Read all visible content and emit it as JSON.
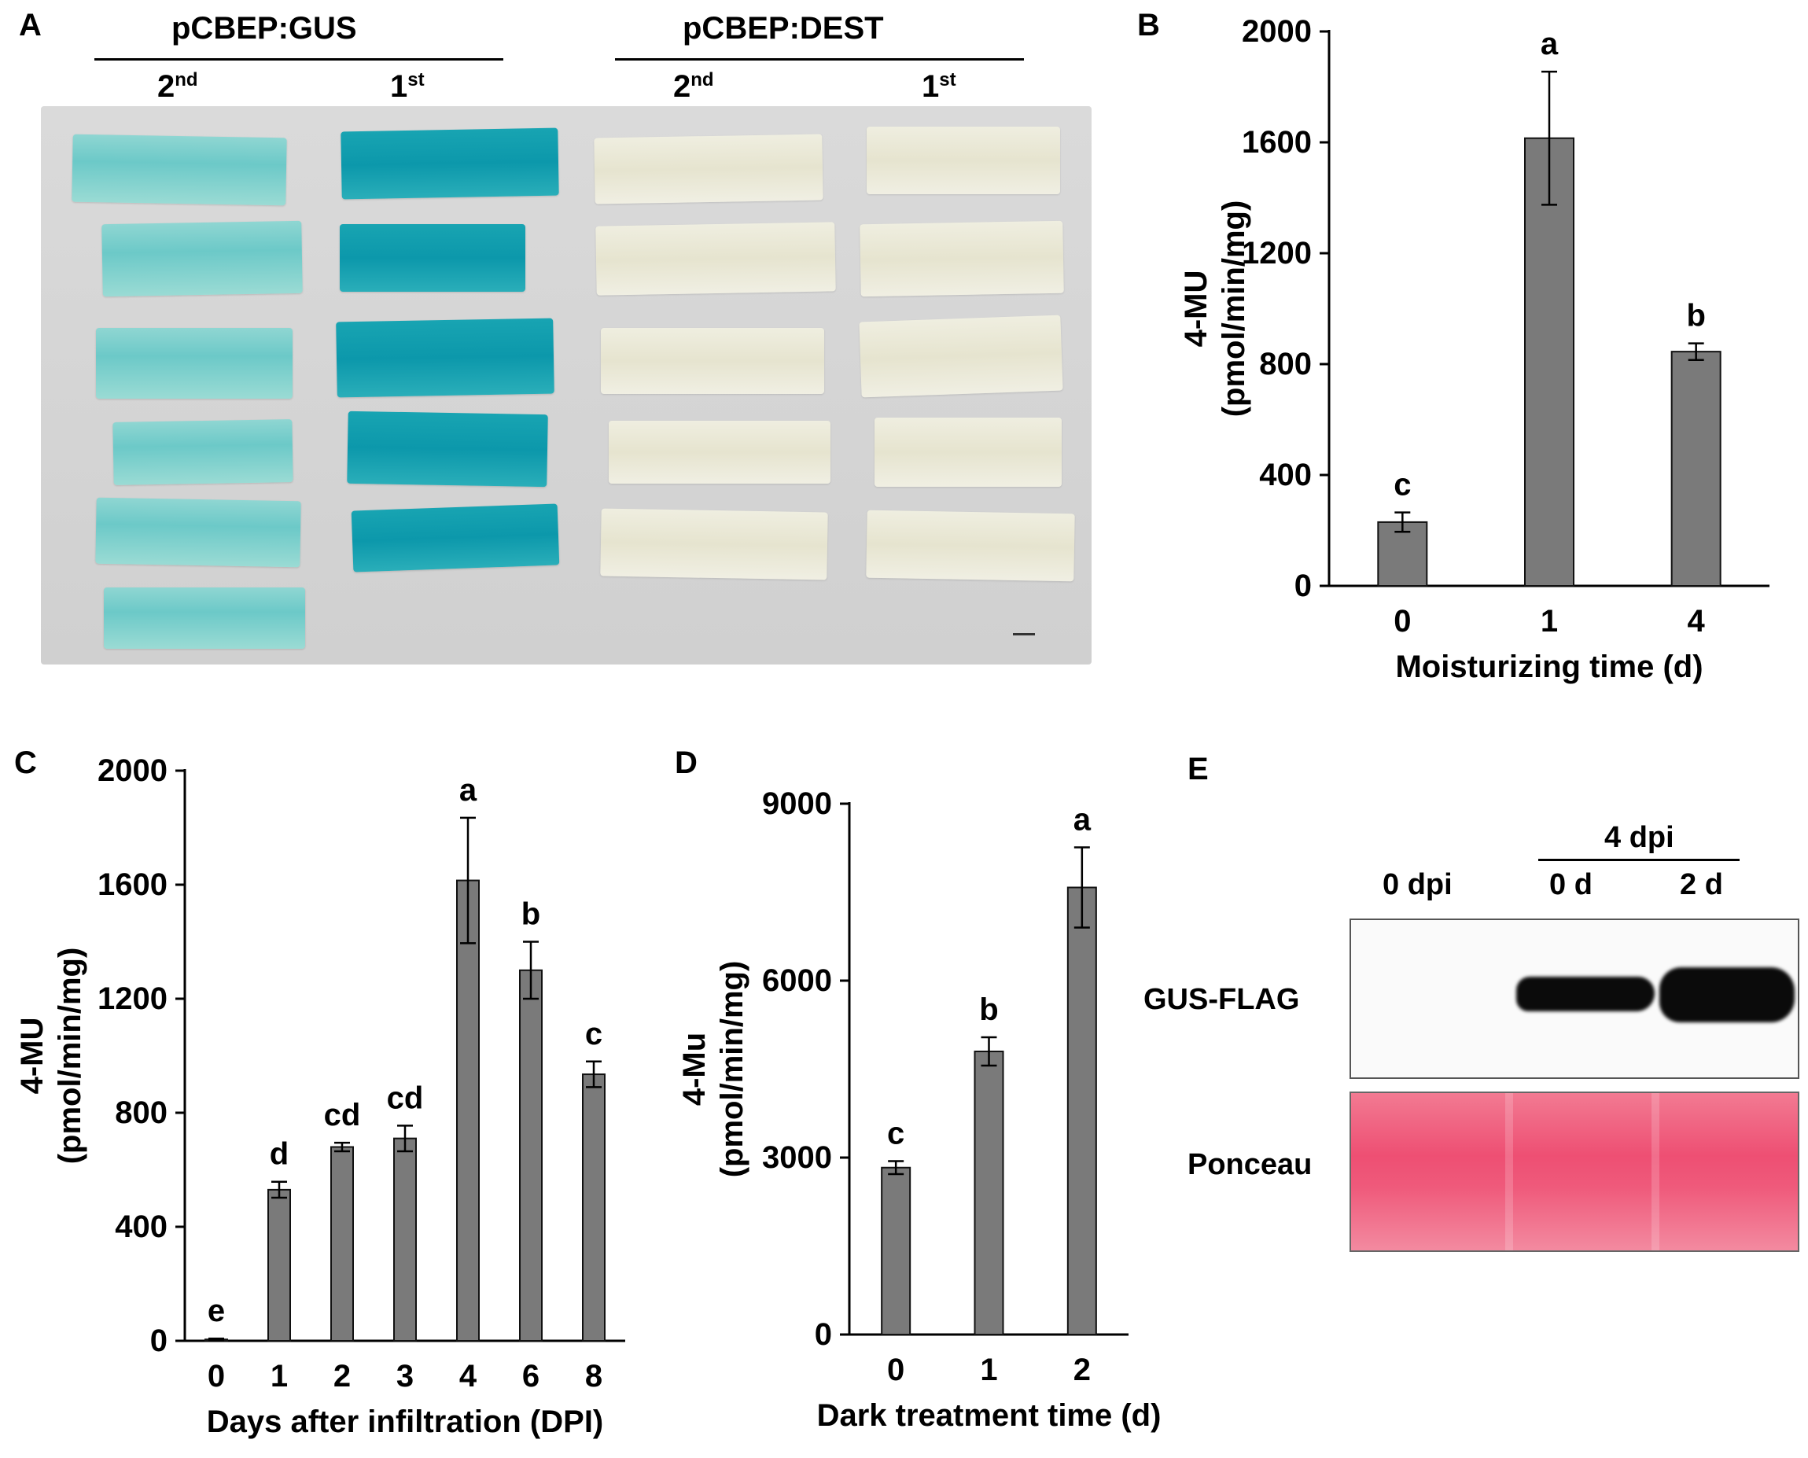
{
  "panelA": {
    "label": "A",
    "groups": [
      {
        "title": "pCBEP:GUS",
        "cols": [
          {
            "base": "2",
            "sup": "nd"
          },
          {
            "base": "1",
            "sup": "st"
          }
        ]
      },
      {
        "title": "pCBEP:DEST",
        "cols": [
          {
            "base": "2",
            "sup": "nd"
          },
          {
            "base": "1",
            "sup": "st"
          }
        ]
      }
    ]
  },
  "chart_data": [
    {
      "panel": "B",
      "type": "bar",
      "categories": [
        "0",
        "1",
        "4"
      ],
      "values": [
        230,
        1615,
        845
      ],
      "errors": [
        35,
        240,
        30
      ],
      "letters": [
        "c",
        "a",
        "b"
      ],
      "ylabel_line1": "4-MU",
      "ylabel_line2": "(pmol/min/mg)",
      "xlabel": "Moisturizing time (d)",
      "ylim": [
        0,
        2000
      ],
      "yticks": [
        "0",
        "400",
        "800",
        "1200",
        "1600",
        "2000"
      ]
    },
    {
      "panel": "C",
      "type": "bar",
      "categories": [
        "0",
        "1",
        "2",
        "3",
        "4",
        "6",
        "8"
      ],
      "values": [
        5,
        530,
        680,
        710,
        1615,
        1300,
        935
      ],
      "errors": [
        3,
        28,
        15,
        45,
        220,
        100,
        45
      ],
      "letters": [
        "e",
        "d",
        "cd",
        "cd",
        "a",
        "b",
        "c"
      ],
      "ylabel_line1": "4-MU",
      "ylabel_line2": "(pmol/min/mg)",
      "xlabel": "Days after infiltration (DPI)",
      "ylim": [
        0,
        2000
      ],
      "yticks": [
        "0",
        "400",
        "800",
        "1200",
        "1600",
        "2000"
      ]
    },
    {
      "panel": "D",
      "type": "bar",
      "categories": [
        "0",
        "1",
        "2"
      ],
      "values": [
        2830,
        4800,
        7580
      ],
      "errors": [
        110,
        240,
        680
      ],
      "letters": [
        "c",
        "b",
        "a"
      ],
      "ylabel_line1": "4-Mu",
      "ylabel_line2": "(pmol/min/mg)",
      "xlabel": "Dark treatment time (d)",
      "ylim": [
        0,
        9000
      ],
      "yticks": [
        "0",
        "3000",
        "6000",
        "9000"
      ]
    }
  ],
  "panelE": {
    "label": "E",
    "header_group": "4 dpi",
    "lanes": [
      "0 dpi",
      "0 d",
      "2 d"
    ],
    "rows": [
      "GUS-FLAG",
      "Ponceau"
    ]
  },
  "colors": {
    "bar": "#7a7a7a",
    "axis": "#000000",
    "gus_blue": "#1aa6b4",
    "ponceau": "#ee5577"
  }
}
